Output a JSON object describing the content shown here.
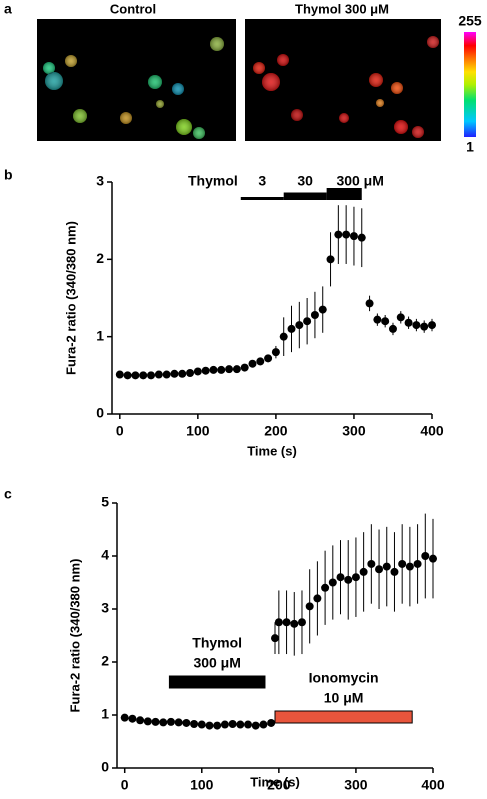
{
  "panel_labels": [
    "a",
    "b",
    "c"
  ],
  "images": {
    "titles": [
      "Control",
      "Thymol 300 μM"
    ],
    "colorbar": {
      "max": 255,
      "min": 1
    }
  },
  "chart_data": [
    {
      "type": "scatter",
      "xlabel": "Time (s)",
      "ylabel": "Fura-2 ratio (340/380 nm)",
      "x": [
        0,
        10,
        20,
        30,
        40,
        50,
        60,
        70,
        80,
        90,
        100,
        110,
        120,
        130,
        140,
        150,
        160,
        170,
        180,
        190,
        200,
        210,
        220,
        230,
        240,
        250,
        260,
        270,
        280,
        290,
        300,
        310,
        320,
        330,
        340,
        350,
        360,
        370,
        380,
        390,
        400
      ],
      "values": [
        0.51,
        0.5,
        0.5,
        0.5,
        0.5,
        0.51,
        0.51,
        0.52,
        0.52,
        0.53,
        0.55,
        0.56,
        0.57,
        0.57,
        0.58,
        0.58,
        0.6,
        0.65,
        0.68,
        0.72,
        0.8,
        1.0,
        1.1,
        1.15,
        1.2,
        1.28,
        1.35,
        2.0,
        2.32,
        2.32,
        2.3,
        2.28,
        1.43,
        1.22,
        1.2,
        1.1,
        1.25,
        1.18,
        1.15,
        1.13,
        1.15
      ],
      "errors": [
        0.02,
        0.02,
        0.02,
        0.02,
        0.02,
        0.02,
        0.02,
        0.02,
        0.02,
        0.02,
        0.02,
        0.02,
        0.02,
        0.02,
        0.02,
        0.02,
        0.04,
        0.04,
        0.05,
        0.05,
        0.08,
        0.25,
        0.3,
        0.3,
        0.3,
        0.3,
        0.3,
        0.35,
        0.38,
        0.38,
        0.38,
        0.38,
        0.1,
        0.08,
        0.08,
        0.08,
        0.08,
        0.08,
        0.08,
        0.08,
        0.08
      ],
      "color": "#000000",
      "xlim": [
        -10,
        400
      ],
      "xticks": [
        0,
        100,
        200,
        300,
        400
      ],
      "ylim": [
        0,
        3
      ],
      "yticks": [
        0,
        1,
        2,
        3
      ],
      "treatment": {
        "label": "Thymol",
        "steps": [
          {
            "label": "3",
            "start": 155,
            "end": 210
          },
          {
            "label": "30",
            "start": 210,
            "end": 265
          },
          {
            "label": "300 μM",
            "start": 265,
            "end": 310
          }
        ]
      }
    },
    {
      "type": "scatter",
      "xlabel": "Time (s)",
      "ylabel": "Fura-2 ratio (340/380 nm)",
      "x": [
        0,
        10,
        20,
        30,
        40,
        50,
        60,
        70,
        80,
        90,
        100,
        110,
        120,
        130,
        140,
        150,
        160,
        170,
        180,
        190,
        195,
        200,
        210,
        220,
        230,
        240,
        250,
        260,
        270,
        280,
        290,
        300,
        310,
        320,
        330,
        340,
        350,
        360,
        370,
        380,
        390,
        400
      ],
      "values": [
        0.95,
        0.93,
        0.9,
        0.88,
        0.87,
        0.86,
        0.87,
        0.86,
        0.85,
        0.83,
        0.82,
        0.8,
        0.8,
        0.82,
        0.83,
        0.82,
        0.82,
        0.8,
        0.82,
        0.85,
        2.45,
        2.75,
        2.75,
        2.72,
        2.75,
        3.05,
        3.2,
        3.4,
        3.5,
        3.6,
        3.55,
        3.6,
        3.7,
        3.85,
        3.75,
        3.8,
        3.7,
        3.85,
        3.8,
        3.85,
        4.0,
        3.95
      ],
      "errors": [
        0.05,
        0.05,
        0.05,
        0.05,
        0.05,
        0.05,
        0.05,
        0.05,
        0.05,
        0.05,
        0.05,
        0.05,
        0.05,
        0.05,
        0.05,
        0.05,
        0.05,
        0.05,
        0.05,
        0.05,
        0.3,
        0.6,
        0.6,
        0.6,
        0.6,
        0.7,
        0.7,
        0.7,
        0.7,
        0.7,
        0.75,
        0.75,
        0.75,
        0.75,
        0.75,
        0.75,
        0.75,
        0.75,
        0.75,
        0.75,
        0.8,
        0.75
      ],
      "color": "#000000",
      "xlim": [
        -10,
        400
      ],
      "xticks": [
        0,
        100,
        200,
        300,
        400
      ],
      "ylim": [
        0,
        5
      ],
      "yticks": [
        0,
        1,
        2,
        3,
        4,
        5
      ],
      "treatments": [
        {
          "lines": [
            "Thymol",
            "300 μM"
          ],
          "start": 58,
          "end": 182,
          "color": "#000000"
        },
        {
          "lines": [
            "Ionomycin",
            "10 μM"
          ],
          "start": 195,
          "end": 373,
          "color": "#e8553c"
        }
      ]
    }
  ]
}
